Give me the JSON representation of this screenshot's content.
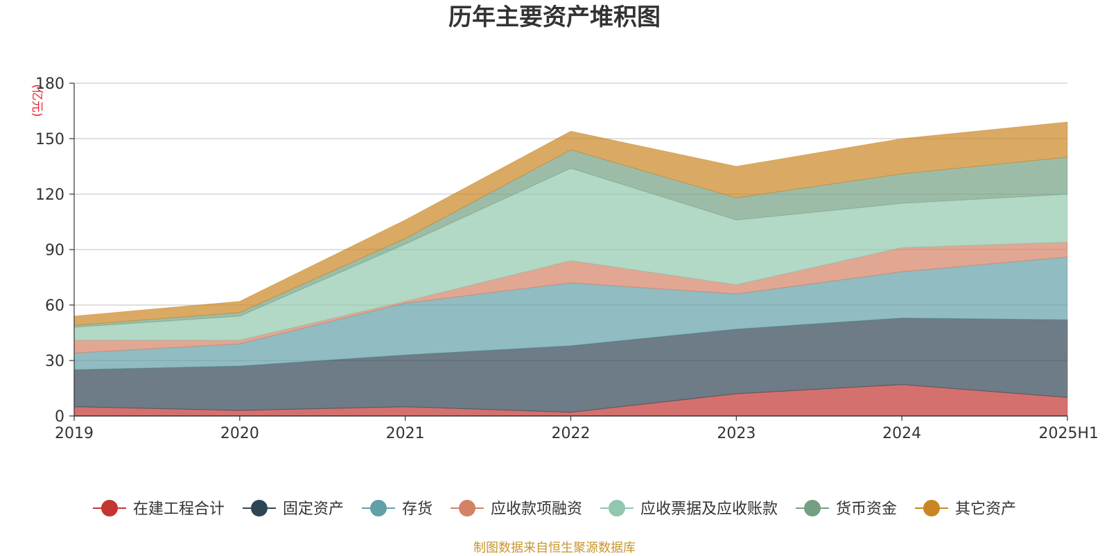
{
  "chart_data": {
    "type": "area",
    "stacked": true,
    "title": "历年主要资产堆积图",
    "unit": "(亿元)",
    "categories": [
      "2019",
      "2020",
      "2021",
      "2022",
      "2023",
      "2024",
      "2025H1"
    ],
    "yticks": [
      "0",
      "30",
      "60",
      "90",
      "120",
      "150",
      "180"
    ],
    "ylim": [
      0,
      180
    ],
    "series": [
      {
        "name": "在建工程合计",
        "color": "#c23531",
        "values": [
          5,
          3,
          5,
          2,
          12,
          17,
          10
        ]
      },
      {
        "name": "固定资产",
        "color": "#2f4554",
        "values": [
          20,
          24,
          28,
          36,
          35,
          36,
          42
        ]
      },
      {
        "name": "存货",
        "color": "#61a0a8",
        "values": [
          9,
          12,
          28,
          34,
          19,
          25,
          34
        ]
      },
      {
        "name": "应收款项融资",
        "color": "#d48265",
        "values": [
          7,
          2,
          1,
          12,
          5,
          13,
          8
        ]
      },
      {
        "name": "应收票据及应收账款",
        "color": "#91c7ae",
        "values": [
          7,
          13,
          31,
          50,
          35,
          24,
          26
        ]
      },
      {
        "name": "货币资金",
        "color": "#749f83",
        "values": [
          1,
          2,
          3,
          10,
          12,
          16,
          20
        ]
      },
      {
        "name": "其它资产",
        "color": "#ca8622",
        "values": [
          5,
          6,
          10,
          10,
          17,
          19,
          19
        ]
      }
    ],
    "legend_position": "bottom"
  },
  "source": "制图数据来自恒生聚源数据库"
}
